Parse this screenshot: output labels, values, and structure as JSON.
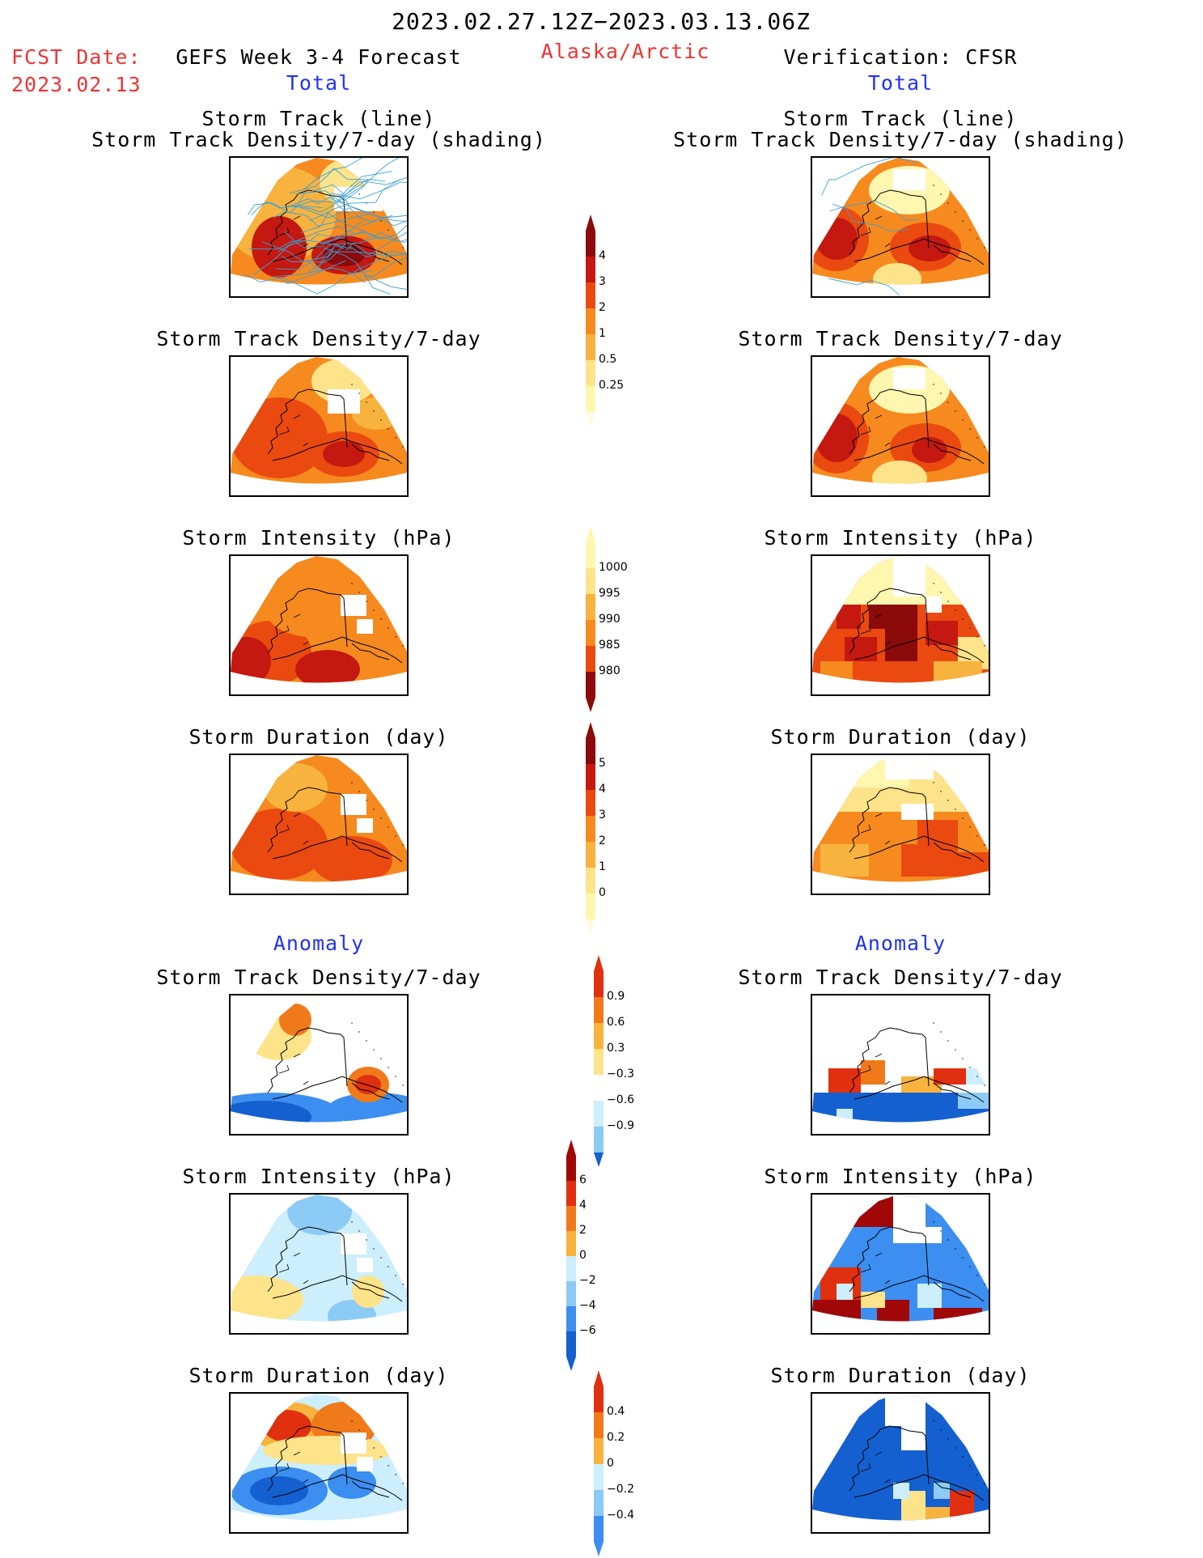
{
  "header": {
    "period": "2023.02.27.12Z−2023.03.13.06Z",
    "fcst_label": "FCST Date:",
    "fcst_date": "2023.02.13",
    "left_title": "GEFS Week 3-4 Forecast",
    "region": "Alaska/Arctic",
    "right_title": "Verification: CFSR",
    "total_left": "Total",
    "total_right": "Total"
  },
  "sections": {
    "anomaly_left": "Anomaly",
    "anomaly_right": "Anomaly"
  },
  "panels": {
    "track_line": "Storm Track (line)",
    "track_shading": "Storm Track Density/7-day (shading)",
    "track_density": "Storm Track Density/7-day",
    "intensity": "Storm Intensity (hPa)",
    "duration": "Storm Duration (day)"
  },
  "colorbars": {
    "density": [
      "4",
      "3",
      "2",
      "1",
      "0.5",
      "0.25"
    ],
    "intensity": [
      "1000",
      "995",
      "990",
      "985",
      "980"
    ],
    "duration": [
      "5",
      "4",
      "3",
      "2",
      "1",
      "0"
    ],
    "density_anom": [
      "0.9",
      "0.6",
      "0.3",
      "−0.3",
      "−0.6",
      "−0.9"
    ],
    "intensity_anom": [
      "6",
      "4",
      "2",
      "0",
      "−2",
      "−4",
      "−6"
    ],
    "duration_anom": [
      "0.4",
      "0.2",
      "0",
      "−0.2",
      "−0.4"
    ]
  },
  "colors": {
    "warm_scale": [
      "#fff7b0",
      "#fde38a",
      "#f8b33f",
      "#f68a1e",
      "#ea4a10",
      "#c41810",
      "#8b0a0a"
    ],
    "anom_scale": [
      "#1460d0",
      "#3c8ef0",
      "#8ccbf5",
      "#cdeefc",
      "#ffffff",
      "#fde38a",
      "#f8b33f",
      "#f07a1a",
      "#e03010",
      "#a00808"
    ],
    "track_line": "#3aa0d8",
    "header_red": "#ee3333",
    "header_blue": "#2233ee"
  }
}
